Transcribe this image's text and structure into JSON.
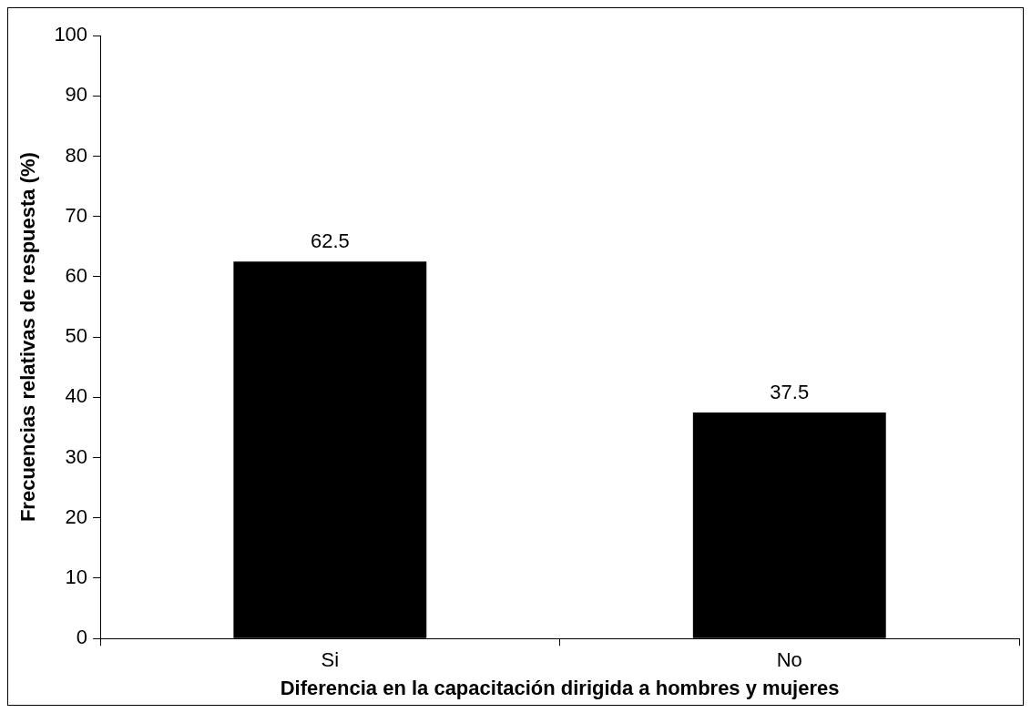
{
  "chart_data": {
    "type": "bar",
    "xlabel": "Diferencia en la capacitación dirigida a hombres y mujeres",
    "ylabel": "Frecuencias relativas de respuesta (%)",
    "categories": [
      "Si",
      "No"
    ],
    "values": [
      62.5,
      37.5
    ],
    "color": "#000000",
    "ylim": [
      0,
      100
    ],
    "yticks": [
      0,
      10,
      20,
      30,
      40,
      50,
      60,
      70,
      80,
      90,
      100
    ],
    "grid": false,
    "legend": false,
    "data_labels": true
  }
}
